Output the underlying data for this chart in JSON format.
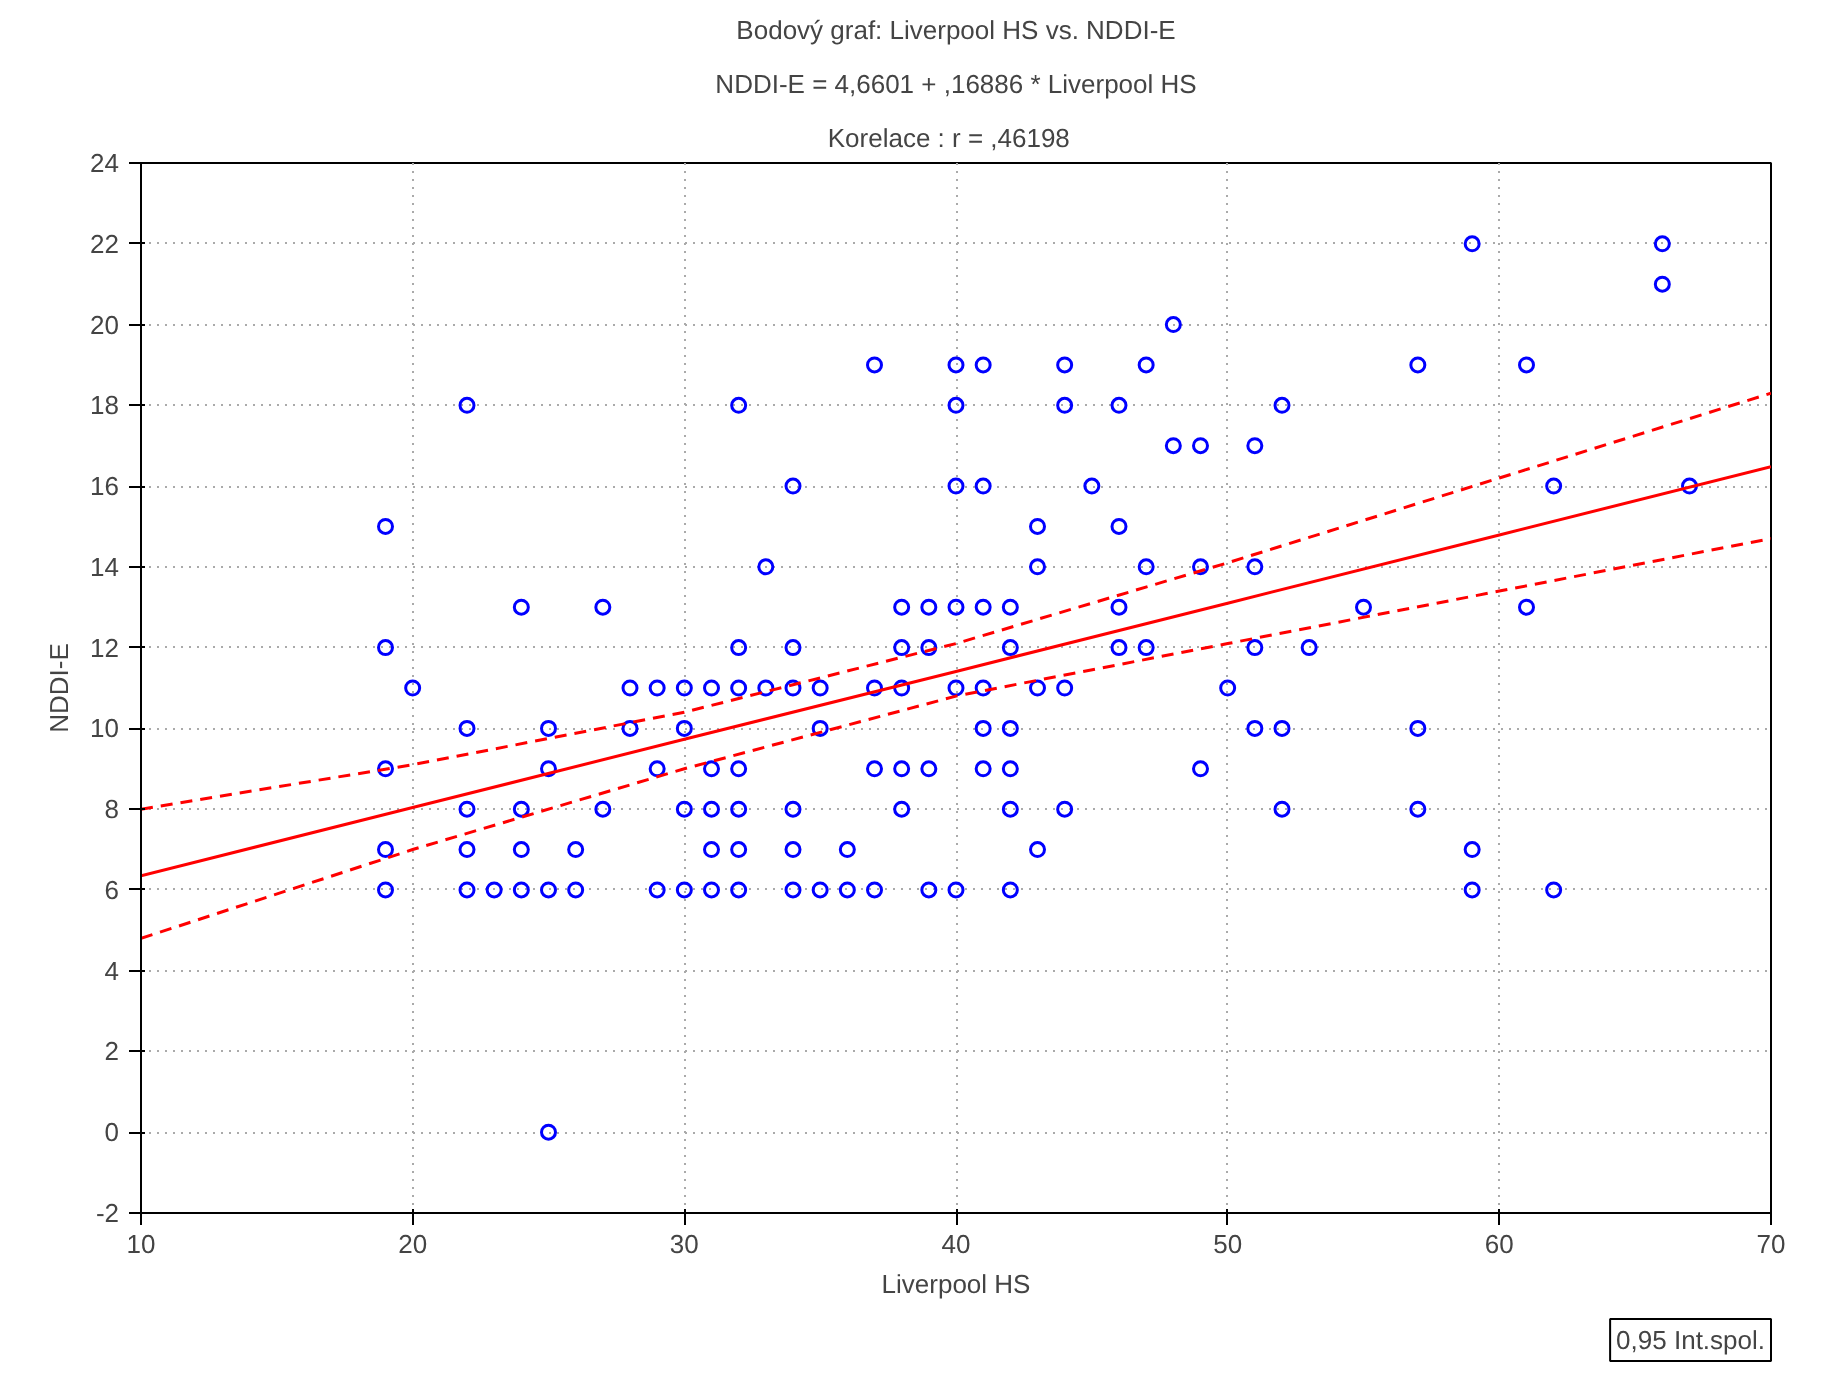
{
  "chart_data": {
    "type": "scatter",
    "title": "Bodový graf: Liverpool HS vs. NDDI-E",
    "subtitle": "NDDI-E = 4,6601 + ,16886 * Liverpool HS",
    "xlabel": "Liverpool HS",
    "ylabel": "NDDI-E",
    "annotations": [
      "Korelace :   r = ,46198",
      "0,95 Int.spol."
    ],
    "xlim": [
      10,
      70
    ],
    "xticks": [
      10,
      20,
      30,
      40,
      50,
      60,
      70
    ],
    "ylim": [
      -2,
      24
    ],
    "yticks": [
      -2,
      0,
      2,
      4,
      6,
      8,
      10,
      12,
      14,
      16,
      18,
      20,
      22,
      24
    ],
    "grid": true,
    "series": [
      {
        "color": "#0000ff",
        "marker": "circle",
        "x": [
          19,
          19,
          19,
          19,
          19,
          20,
          22,
          22,
          22,
          22,
          22,
          23,
          24,
          24,
          24,
          24,
          25,
          25,
          25,
          25,
          26,
          26,
          27,
          27,
          28,
          28,
          29,
          29,
          29,
          30,
          30,
          30,
          30,
          31,
          31,
          31,
          31,
          31,
          32,
          32,
          32,
          32,
          32,
          32,
          32,
          33,
          33,
          34,
          34,
          34,
          34,
          34,
          34,
          35,
          35,
          35,
          36,
          36,
          37,
          37,
          37,
          37,
          38,
          38,
          38,
          38,
          38,
          39,
          39,
          39,
          39,
          40,
          40,
          40,
          40,
          40,
          40,
          41,
          41,
          41,
          41,
          41,
          41,
          42,
          42,
          42,
          42,
          42,
          42,
          43,
          43,
          43,
          43,
          44,
          44,
          44,
          44,
          45,
          46,
          46,
          46,
          46,
          47,
          47,
          47,
          48,
          48,
          49,
          49,
          49,
          50,
          51,
          51,
          51,
          51,
          52,
          52,
          52,
          53,
          55,
          57,
          57,
          57,
          59,
          59,
          59,
          61,
          61,
          62,
          62,
          66,
          66,
          67
        ],
        "values": [
          15,
          12,
          9,
          7,
          6,
          11,
          18,
          10,
          8,
          7,
          6,
          6,
          13,
          8,
          7,
          6,
          10,
          9,
          6,
          0,
          7,
          6,
          13,
          8,
          11,
          10,
          11,
          9,
          6,
          11,
          10,
          8,
          6,
          11,
          9,
          8,
          7,
          6,
          18,
          12,
          11,
          9,
          8,
          7,
          6,
          14,
          11,
          16,
          12,
          11,
          8,
          7,
          6,
          11,
          10,
          6,
          7,
          6,
          19,
          11,
          9,
          6,
          13,
          12,
          11,
          9,
          8,
          13,
          12,
          9,
          6,
          19,
          18,
          16,
          13,
          11,
          6,
          19,
          16,
          13,
          11,
          10,
          9,
          13,
          12,
          10,
          9,
          8,
          6,
          15,
          14,
          11,
          7,
          19,
          18,
          11,
          8,
          16,
          18,
          15,
          13,
          12,
          19,
          14,
          12,
          20,
          17,
          17,
          14,
          9,
          11,
          17,
          14,
          12,
          10,
          18,
          10,
          8,
          12,
          13,
          19,
          10,
          8,
          22,
          7,
          6,
          19,
          13,
          16,
          6,
          22,
          21,
          16
        ]
      },
      {
        "type": "line",
        "color": "#ff0000",
        "line_style": "solid",
        "x": [
          10,
          20,
          30,
          40,
          50,
          60,
          70
        ],
        "values": [
          6.35,
          8.04,
          9.73,
          11.41,
          13.1,
          14.79,
          16.48
        ]
      },
      {
        "type": "line",
        "color": "#ff0000",
        "line_style": "dashed",
        "x": [
          10,
          20,
          30,
          40,
          50,
          60,
          70
        ],
        "values": [
          4.8,
          7.0,
          9.0,
          10.8,
          12.1,
          13.4,
          14.7
        ]
      },
      {
        "type": "line",
        "color": "#ff0000",
        "line_style": "dashed",
        "x": [
          10,
          20,
          30,
          40,
          50,
          60,
          70
        ],
        "values": [
          8.0,
          9.1,
          10.4,
          12.1,
          14.1,
          16.2,
          18.3
        ]
      }
    ]
  }
}
